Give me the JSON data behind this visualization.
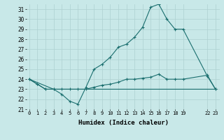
{
  "xlabel": "Humidex (Indice chaleur)",
  "bg_color": "#c8e8e8",
  "grid_color": "#aed0d0",
  "line_color": "#1a6e6e",
  "ylim": [
    21,
    31.5
  ],
  "yticks": [
    21,
    22,
    23,
    24,
    25,
    26,
    27,
    28,
    29,
    30,
    31
  ],
  "xtick_positions": [
    0,
    1,
    2,
    3,
    4,
    5,
    6,
    7,
    8,
    9,
    10,
    11,
    12,
    13,
    14,
    15,
    16,
    17,
    18,
    19,
    22,
    23
  ],
  "xtick_labels": [
    "0",
    "1",
    "2",
    "3",
    "4",
    "5",
    "6",
    "7",
    "8",
    "9",
    "10",
    "11",
    "12",
    "13",
    "14",
    "15",
    "16",
    "17",
    "18",
    "19",
    "22",
    "23"
  ],
  "xlim": [
    -0.3,
    23.5
  ],
  "line1_x": [
    0,
    1,
    2,
    3,
    4,
    5,
    6,
    7,
    8,
    9,
    10,
    11,
    12,
    13,
    14,
    15,
    16,
    17,
    18,
    19,
    22,
    23
  ],
  "line1_y": [
    24,
    23.5,
    23,
    23,
    22.5,
    21.8,
    21.5,
    23.2,
    25,
    25.5,
    26.2,
    27.2,
    27.5,
    28.2,
    29.2,
    31.2,
    31.5,
    30,
    29.0,
    29.0,
    24.3,
    23
  ],
  "line2_x": [
    0,
    1,
    2,
    3,
    4,
    5,
    6,
    7,
    8,
    9,
    10,
    11,
    12,
    13,
    14,
    15,
    16,
    17,
    18,
    19,
    22,
    23
  ],
  "line2_y": [
    24,
    23.5,
    23,
    23,
    23,
    23,
    23,
    23,
    23.2,
    23.4,
    23.5,
    23.7,
    24.0,
    24.0,
    24.1,
    24.2,
    24.5,
    24.0,
    24.0,
    24.0,
    24.4,
    23
  ],
  "line3_x": [
    0,
    3,
    7,
    19,
    22,
    23
  ],
  "line3_y": [
    24,
    23,
    23,
    23,
    23,
    23
  ]
}
